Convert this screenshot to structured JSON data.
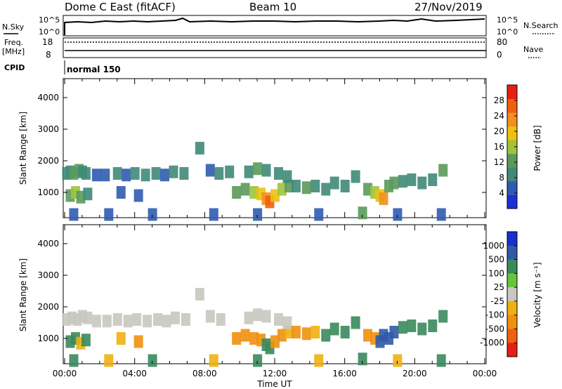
{
  "header": {
    "title": "Dome C East (fitACF)",
    "beam": "Beam 10",
    "date": "27/Nov/2019"
  },
  "strip_labels": {
    "nsky": "N.Sky",
    "nsearch": "N.Search",
    "freq_line1": "Freq.",
    "freq_line2": "[MHz]",
    "nave": "Nave",
    "cpid": "CPID",
    "cpid_value": "normal 150"
  },
  "strip_ticks": {
    "nsky_top": "10^5",
    "nsky_bottom": "10^0",
    "nsearch_top": "10^5",
    "nsearch_bottom": "10^0",
    "freq_top": "18",
    "freq_bottom": "8",
    "nave_top": "80",
    "nave_bottom": "0"
  },
  "colors": {
    "scale_power": [
      "#1f2fd6",
      "#2f5cb0",
      "#3f8a78",
      "#5a9a5a",
      "#9fc43a",
      "#f0c010",
      "#f09020",
      "#f06010",
      "#e62010"
    ],
    "scale_velocity": [
      "#1a2fd0",
      "#2f5aa8",
      "#3a8a5c",
      "#66c43a",
      "#c8c8c0",
      "#f0b010",
      "#f09010",
      "#f06010",
      "#e62010"
    ]
  },
  "chart_data": [
    {
      "type": "heatmap",
      "name": "power",
      "ylabel": "Slant Range [km]",
      "yticks": [
        "1000",
        "2000",
        "3000",
        "4000"
      ],
      "ylim": [
        200,
        4600
      ],
      "xlim_hours": [
        0,
        24
      ],
      "colorbar_label": "Power [dB]",
      "colorbar_ticks": [
        "4",
        "8",
        "12",
        "16",
        "20",
        "24",
        "28"
      ],
      "colorbar_range": [
        0,
        32
      ],
      "cells": [
        {
          "t": 0.1,
          "r": 1600,
          "v": 8
        },
        {
          "t": 0.3,
          "r": 1650,
          "v": 10
        },
        {
          "t": 0.5,
          "r": 1600,
          "v": 12
        },
        {
          "t": 0.8,
          "r": 1700,
          "v": 14
        },
        {
          "t": 1.0,
          "r": 1650,
          "v": 10
        },
        {
          "t": 1.2,
          "r": 1600,
          "v": 8
        },
        {
          "t": 0.3,
          "r": 900,
          "v": 12
        },
        {
          "t": 0.6,
          "r": 1000,
          "v": 16
        },
        {
          "t": 0.9,
          "r": 850,
          "v": 14
        },
        {
          "t": 1.3,
          "r": 950,
          "v": 10
        },
        {
          "t": 1.8,
          "r": 1550,
          "v": 6
        },
        {
          "t": 2.3,
          "r": 1550,
          "v": 7
        },
        {
          "t": 3.0,
          "r": 1600,
          "v": 8
        },
        {
          "t": 3.5,
          "r": 1550,
          "v": 7
        },
        {
          "t": 4.0,
          "r": 1600,
          "v": 9
        },
        {
          "t": 4.6,
          "r": 1550,
          "v": 8
        },
        {
          "t": 5.2,
          "r": 1600,
          "v": 8
        },
        {
          "t": 5.7,
          "r": 1550,
          "v": 7
        },
        {
          "t": 6.2,
          "r": 1650,
          "v": 9
        },
        {
          "t": 6.8,
          "r": 1600,
          "v": 8
        },
        {
          "t": 3.2,
          "r": 1000,
          "v": 6
        },
        {
          "t": 4.2,
          "r": 900,
          "v": 7
        },
        {
          "t": 7.7,
          "r": 2400,
          "v": 8
        },
        {
          "t": 8.3,
          "r": 1700,
          "v": 7
        },
        {
          "t": 8.8,
          "r": 1600,
          "v": 8
        },
        {
          "t": 9.4,
          "r": 1650,
          "v": 9
        },
        {
          "t": 9.8,
          "r": 1000,
          "v": 12
        },
        {
          "t": 10.3,
          "r": 1100,
          "v": 14
        },
        {
          "t": 10.8,
          "r": 1000,
          "v": 16
        },
        {
          "t": 11.2,
          "r": 950,
          "v": 20
        },
        {
          "t": 11.5,
          "r": 800,
          "v": 24
        },
        {
          "t": 11.7,
          "r": 700,
          "v": 28
        },
        {
          "t": 12.0,
          "r": 900,
          "v": 20
        },
        {
          "t": 12.4,
          "r": 1100,
          "v": 16
        },
        {
          "t": 12.8,
          "r": 1200,
          "v": 12
        },
        {
          "t": 10.5,
          "r": 1650,
          "v": 10
        },
        {
          "t": 11.0,
          "r": 1750,
          "v": 12
        },
        {
          "t": 11.5,
          "r": 1700,
          "v": 10
        },
        {
          "t": 12.2,
          "r": 1600,
          "v": 9
        },
        {
          "t": 12.7,
          "r": 1500,
          "v": 10
        },
        {
          "t": 13.2,
          "r": 1200,
          "v": 10
        },
        {
          "t": 13.8,
          "r": 1150,
          "v": 12
        },
        {
          "t": 14.3,
          "r": 1200,
          "v": 10
        },
        {
          "t": 14.9,
          "r": 1100,
          "v": 8
        },
        {
          "t": 15.4,
          "r": 1300,
          "v": 10
        },
        {
          "t": 16.0,
          "r": 1200,
          "v": 9
        },
        {
          "t": 16.6,
          "r": 1500,
          "v": 8
        },
        {
          "t": 17.3,
          "r": 1100,
          "v": 12
        },
        {
          "t": 17.7,
          "r": 1000,
          "v": 16
        },
        {
          "t": 18.0,
          "r": 900,
          "v": 20
        },
        {
          "t": 18.2,
          "r": 800,
          "v": 24
        },
        {
          "t": 18.5,
          "r": 1200,
          "v": 14
        },
        {
          "t": 18.8,
          "r": 1300,
          "v": 12
        },
        {
          "t": 19.3,
          "r": 1350,
          "v": 10
        },
        {
          "t": 19.8,
          "r": 1400,
          "v": 9
        },
        {
          "t": 20.4,
          "r": 1300,
          "v": 8
        },
        {
          "t": 21.0,
          "r": 1400,
          "v": 8
        },
        {
          "t": 21.6,
          "r": 1700,
          "v": 12
        },
        {
          "t": 0.5,
          "r": 300,
          "v": 6
        },
        {
          "t": 2.5,
          "r": 300,
          "v": 6
        },
        {
          "t": 5.0,
          "r": 300,
          "v": 6
        },
        {
          "t": 8.5,
          "r": 300,
          "v": 6
        },
        {
          "t": 11.0,
          "r": 300,
          "v": 6
        },
        {
          "t": 14.5,
          "r": 300,
          "v": 6
        },
        {
          "t": 17.0,
          "r": 350,
          "v": 12
        },
        {
          "t": 19.0,
          "r": 300,
          "v": 6
        },
        {
          "t": 21.5,
          "r": 300,
          "v": 6
        }
      ]
    },
    {
      "type": "heatmap",
      "name": "velocity",
      "ylabel": "Slant Range [km]",
      "yticks": [
        "1000",
        "2000",
        "3000",
        "4000"
      ],
      "ylim": [
        200,
        4600
      ],
      "xlim_hours": [
        0,
        24
      ],
      "xticks": [
        "00:00",
        "04:00",
        "08:00",
        "12:00",
        "16:00",
        "20:00",
        "00:00"
      ],
      "xlabel": "Time UT",
      "colorbar_label": "Velocity [m s⁻¹]",
      "colorbar_ticks": [
        "1000",
        "500",
        "100",
        "25",
        "-25",
        "-100",
        "-500",
        "-1000"
      ],
      "cells": [
        {
          "t": 0.1,
          "r": 1600,
          "v": 0
        },
        {
          "t": 0.4,
          "r": 1650,
          "v": 0
        },
        {
          "t": 0.7,
          "r": 1600,
          "v": 0
        },
        {
          "t": 1.0,
          "r": 1700,
          "v": 0
        },
        {
          "t": 1.3,
          "r": 1650,
          "v": 0
        },
        {
          "t": 0.3,
          "r": 900,
          "v": 150
        },
        {
          "t": 0.6,
          "r": 1000,
          "v": 120
        },
        {
          "t": 0.9,
          "r": 850,
          "v": -60
        },
        {
          "t": 1.2,
          "r": 950,
          "v": 150
        },
        {
          "t": 1.8,
          "r": 1550,
          "v": 0
        },
        {
          "t": 2.4,
          "r": 1550,
          "v": 0
        },
        {
          "t": 3.0,
          "r": 1600,
          "v": 0
        },
        {
          "t": 3.6,
          "r": 1550,
          "v": 0
        },
        {
          "t": 4.1,
          "r": 1600,
          "v": 0
        },
        {
          "t": 4.7,
          "r": 1550,
          "v": 0
        },
        {
          "t": 5.3,
          "r": 1600,
          "v": 0
        },
        {
          "t": 5.8,
          "r": 1550,
          "v": 0
        },
        {
          "t": 6.3,
          "r": 1650,
          "v": 0
        },
        {
          "t": 6.9,
          "r": 1600,
          "v": 0
        },
        {
          "t": 3.2,
          "r": 1000,
          "v": -60
        },
        {
          "t": 4.2,
          "r": 900,
          "v": -300
        },
        {
          "t": 7.7,
          "r": 2400,
          "v": 0
        },
        {
          "t": 8.3,
          "r": 1700,
          "v": 0
        },
        {
          "t": 8.9,
          "r": 1600,
          "v": 0
        },
        {
          "t": 9.8,
          "r": 1000,
          "v": -300
        },
        {
          "t": 10.3,
          "r": 1100,
          "v": -300
        },
        {
          "t": 10.8,
          "r": 1000,
          "v": -300
        },
        {
          "t": 11.2,
          "r": 950,
          "v": -300
        },
        {
          "t": 11.5,
          "r": 800,
          "v": 150
        },
        {
          "t": 11.7,
          "r": 700,
          "v": 150
        },
        {
          "t": 12.0,
          "r": 900,
          "v": -300
        },
        {
          "t": 12.4,
          "r": 1100,
          "v": -300
        },
        {
          "t": 12.8,
          "r": 1200,
          "v": -60
        },
        {
          "t": 10.5,
          "r": 1650,
          "v": 0
        },
        {
          "t": 11.0,
          "r": 1750,
          "v": 0
        },
        {
          "t": 11.5,
          "r": 1700,
          "v": 0
        },
        {
          "t": 12.2,
          "r": 1600,
          "v": 0
        },
        {
          "t": 12.7,
          "r": 1500,
          "v": 0
        },
        {
          "t": 13.2,
          "r": 1200,
          "v": -300
        },
        {
          "t": 13.8,
          "r": 1150,
          "v": -300
        },
        {
          "t": 14.3,
          "r": 1200,
          "v": -60
        },
        {
          "t": 14.9,
          "r": 1100,
          "v": 150
        },
        {
          "t": 15.4,
          "r": 1300,
          "v": 300
        },
        {
          "t": 16.0,
          "r": 1200,
          "v": 300
        },
        {
          "t": 16.6,
          "r": 1500,
          "v": 300
        },
        {
          "t": 17.3,
          "r": 1100,
          "v": -300
        },
        {
          "t": 17.7,
          "r": 1000,
          "v": -300
        },
        {
          "t": 18.0,
          "r": 900,
          "v": 600
        },
        {
          "t": 18.2,
          "r": 1100,
          "v": 800
        },
        {
          "t": 18.5,
          "r": 1000,
          "v": 800
        },
        {
          "t": 18.8,
          "r": 1200,
          "v": 600
        },
        {
          "t": 19.3,
          "r": 1350,
          "v": 300
        },
        {
          "t": 19.8,
          "r": 1400,
          "v": 300
        },
        {
          "t": 20.4,
          "r": 1300,
          "v": 300
        },
        {
          "t": 21.0,
          "r": 1400,
          "v": 150
        },
        {
          "t": 21.6,
          "r": 1700,
          "v": 150
        },
        {
          "t": 0.5,
          "r": 300,
          "v": 150
        },
        {
          "t": 2.5,
          "r": 300,
          "v": -60
        },
        {
          "t": 5.0,
          "r": 300,
          "v": 150
        },
        {
          "t": 8.5,
          "r": 300,
          "v": -60
        },
        {
          "t": 11.0,
          "r": 300,
          "v": 150
        },
        {
          "t": 14.5,
          "r": 300,
          "v": -60
        },
        {
          "t": 17.0,
          "r": 350,
          "v": 150
        },
        {
          "t": 19.0,
          "r": 300,
          "v": -60
        },
        {
          "t": 21.5,
          "r": 300,
          "v": 150
        }
      ]
    }
  ]
}
